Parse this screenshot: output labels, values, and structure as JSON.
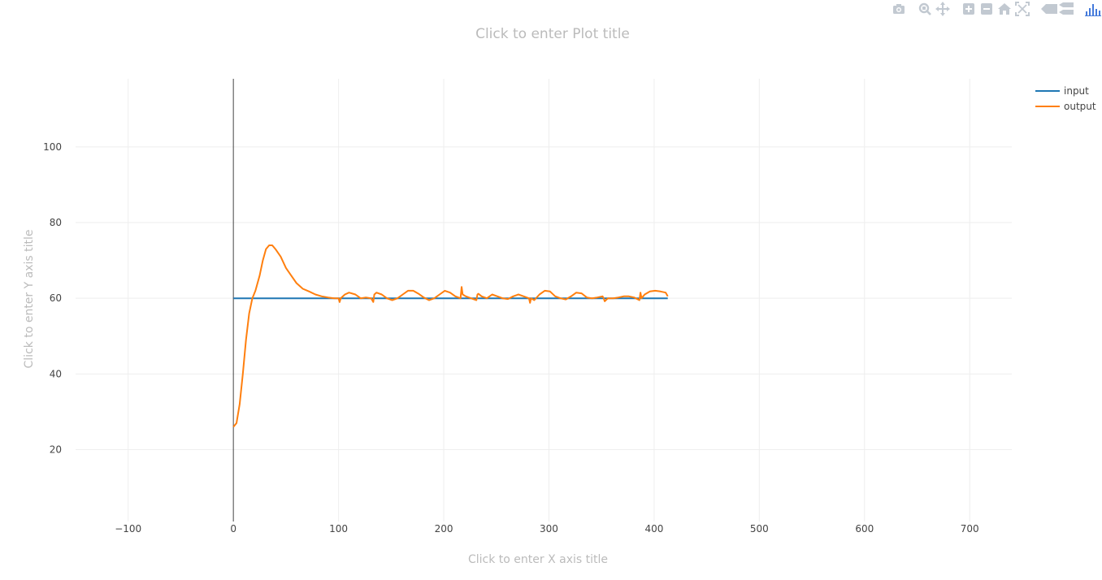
{
  "modebar": {
    "buttons": [
      {
        "name": "camera-icon",
        "group": 0
      },
      {
        "name": "zoom-icon",
        "group": 1
      },
      {
        "name": "pan-icon",
        "group": 1
      },
      {
        "name": "zoom-in-icon",
        "group": 2
      },
      {
        "name": "zoom-out-icon",
        "group": 2
      },
      {
        "name": "home-icon",
        "group": 2
      },
      {
        "name": "autoscale-icon",
        "group": 2
      },
      {
        "name": "hover-closest-icon",
        "group": 3
      },
      {
        "name": "hover-compare-icon",
        "group": 3
      },
      {
        "name": "plotly-logo-icon",
        "group": 4
      }
    ],
    "icon_color": "#c2c9d1",
    "logo_color": "#447adb"
  },
  "chart_data": {
    "type": "line",
    "title": "Click to enter Plot title",
    "xlabel": "Click to enter X axis title",
    "ylabel": "Click to enter Y axis title",
    "xlim": [
      -150,
      740
    ],
    "ylim": [
      1,
      118
    ],
    "x_ticks": [
      -100,
      0,
      100,
      200,
      300,
      400,
      500,
      600,
      700
    ],
    "x_tick_labels": [
      "−100",
      "0",
      "100",
      "200",
      "300",
      "400",
      "500",
      "600",
      "700"
    ],
    "y_ticks": [
      20,
      40,
      60,
      80,
      100
    ],
    "y_tick_labels": [
      "20",
      "40",
      "60",
      "80",
      "100"
    ],
    "grid": true,
    "legend_position": "top-right",
    "series": [
      {
        "name": "input",
        "color": "#1f77b4",
        "x": [
          0,
          413
        ],
        "y": [
          60,
          60
        ]
      },
      {
        "name": "output",
        "color": "#ff7f0e",
        "x": [
          0,
          3,
          6,
          9,
          12,
          15,
          18,
          21,
          23,
          25,
          28,
          31,
          34,
          37,
          40,
          45,
          50,
          55,
          60,
          66,
          72,
          78,
          84,
          90,
          96,
          100,
          101,
          102,
          106,
          110,
          116,
          121,
          126,
          131,
          133,
          134,
          136,
          141,
          146,
          151,
          156,
          161,
          166,
          171,
          176,
          181,
          186,
          191,
          196,
          201,
          206,
          211,
          216,
          217,
          218,
          221,
          226,
          231,
          232,
          233,
          236,
          241,
          246,
          251,
          256,
          261,
          266,
          271,
          276,
          281,
          282,
          283,
          286,
          291,
          296,
          301,
          306,
          311,
          316,
          321,
          326,
          331,
          336,
          341,
          346,
          351,
          352,
          353,
          356,
          361,
          366,
          371,
          376,
          381,
          386,
          387,
          388,
          391,
          396,
          401,
          406,
          411,
          413
        ],
        "y": [
          26,
          27,
          32,
          40,
          49,
          56,
          60,
          62,
          64,
          66,
          70,
          73,
          74,
          74,
          73,
          71,
          68,
          66,
          64,
          62.5,
          61.8,
          61,
          60.5,
          60.2,
          60,
          60,
          59,
          60,
          61,
          61.5,
          61,
          60,
          60.2,
          60,
          59,
          61,
          61.5,
          61,
          60,
          59.5,
          60,
          61,
          62,
          62,
          61.2,
          60.2,
          59.5,
          60,
          61,
          62,
          61.5,
          60.5,
          60,
          63,
          61,
          60.5,
          60,
          59.5,
          61,
          61.2,
          60.5,
          60,
          61,
          60.5,
          60,
          59.8,
          60.5,
          61,
          60.5,
          60,
          58.8,
          60,
          59.5,
          61,
          62,
          61.8,
          60.5,
          60,
          59.7,
          60.5,
          61.5,
          61.3,
          60.2,
          60,
          60.2,
          60.5,
          60,
          59.2,
          60,
          60,
          60.2,
          60.5,
          60.5,
          60.2,
          59.5,
          61.5,
          60,
          61,
          61.8,
          62,
          61.8,
          61.5,
          60.5
        ]
      }
    ]
  }
}
